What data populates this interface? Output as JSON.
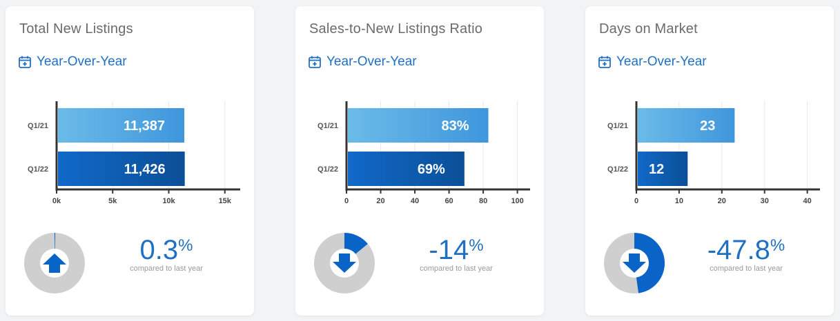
{
  "cards": [
    {
      "title": "Total New Listings",
      "period": "Year-Over-Year",
      "stat": {
        "value": "0.3",
        "unit": "%",
        "caption": "compared to last year",
        "direction": "up",
        "donut_fraction": 0.003
      },
      "chart_data": {
        "type": "bar",
        "orientation": "horizontal",
        "categories": [
          "Q1/21",
          "Q1/22"
        ],
        "values": [
          11387,
          11426
        ],
        "value_labels": [
          "11,387",
          "11,426"
        ],
        "xlim": [
          0,
          16000
        ],
        "xticks": [
          0,
          5000,
          10000,
          15000
        ],
        "xtick_labels": [
          "0k",
          "5k",
          "10k",
          "15k"
        ],
        "grid": true
      }
    },
    {
      "title": "Sales-to-New Listings Ratio",
      "period": "Year-Over-Year",
      "stat": {
        "value": "-14",
        "unit": "%",
        "caption": "compared to last year",
        "direction": "down",
        "donut_fraction": 0.14
      },
      "chart_data": {
        "type": "bar",
        "orientation": "horizontal",
        "categories": [
          "Q1/21",
          "Q1/22"
        ],
        "values": [
          83,
          69
        ],
        "value_labels": [
          "83%",
          "69%"
        ],
        "xlim": [
          0,
          105
        ],
        "xticks": [
          0,
          20,
          40,
          60,
          80,
          100
        ],
        "xtick_labels": [
          "0",
          "20",
          "40",
          "60",
          "80",
          "100"
        ],
        "grid": true
      }
    },
    {
      "title": "Days on Market",
      "period": "Year-Over-Year",
      "stat": {
        "value": "-47.8",
        "unit": "%",
        "caption": "compared to last year",
        "direction": "down",
        "donut_fraction": 0.478
      },
      "chart_data": {
        "type": "bar",
        "orientation": "horizontal",
        "categories": [
          "Q1/21",
          "Q1/22"
        ],
        "values": [
          23,
          12
        ],
        "value_labels": [
          "23",
          "12"
        ],
        "xlim": [
          0,
          42
        ],
        "xticks": [
          0,
          10,
          20,
          30,
          40
        ],
        "xtick_labels": [
          "0",
          "10",
          "20",
          "30",
          "40"
        ],
        "grid": true
      }
    }
  ],
  "colors": {
    "accent": "#1f6fc2",
    "bar_light_start": "#6bbbe9",
    "bar_light_end": "#3f96dc",
    "bar_dark_start": "#1169c9",
    "bar_dark_end": "#0b4f97",
    "donut_track": "#cfcfcf",
    "donut_fill": "#0a63c7",
    "axis": "#333333",
    "grid": "#e8e8e8"
  },
  "icons": {
    "period": "calendar-plus-icon",
    "up": "arrow-up-icon",
    "down": "arrow-down-icon"
  }
}
